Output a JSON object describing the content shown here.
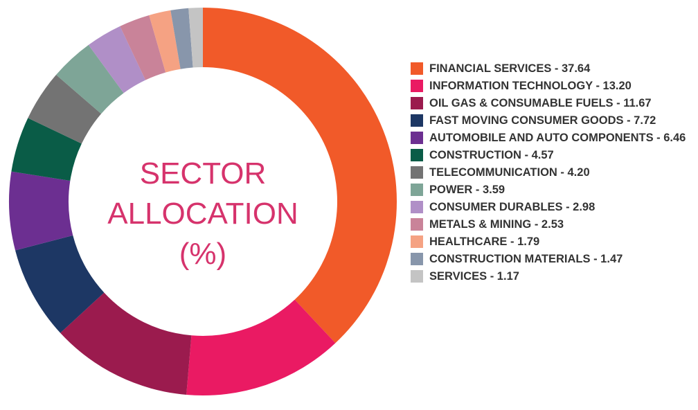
{
  "chart_data": {
    "type": "donut",
    "title": "SECTOR ALLOCATION (%)",
    "categories": [
      "FINANCIAL SERVICES - 37.64",
      "INFORMATION TECHNOLOGY - 13.20",
      "OIL GAS & CONSUMABLE FUELS - 11.67",
      "FAST MOVING CONSUMER GOODS - 7.72",
      "AUTOMOBILE AND AUTO COMPONENTS - 6.46",
      "CONSTRUCTION - 4.57",
      "TELECOMMUNICATION - 4.20",
      "POWER - 3.59",
      "CONSUMER DURABLES - 2.98",
      "METALS & MINING - 2.53",
      "HEALTHCARE - 1.79",
      "CONSTRUCTION MATERIALS - 1.47",
      "SERVICES - 1.17"
    ],
    "values": [
      37.64,
      13.2,
      11.67,
      7.72,
      6.46,
      4.57,
      4.2,
      3.59,
      2.98,
      2.53,
      1.79,
      1.47,
      1.17
    ],
    "colors": [
      "#f15a29",
      "#ea1a63",
      "#9b1b4e",
      "#1d3764",
      "#6c2f91",
      "#0a5c47",
      "#737373",
      "#7ea597",
      "#b08fc7",
      "#c98399",
      "#f5a283",
      "#8896ab",
      "#c4c4c4"
    ]
  }
}
